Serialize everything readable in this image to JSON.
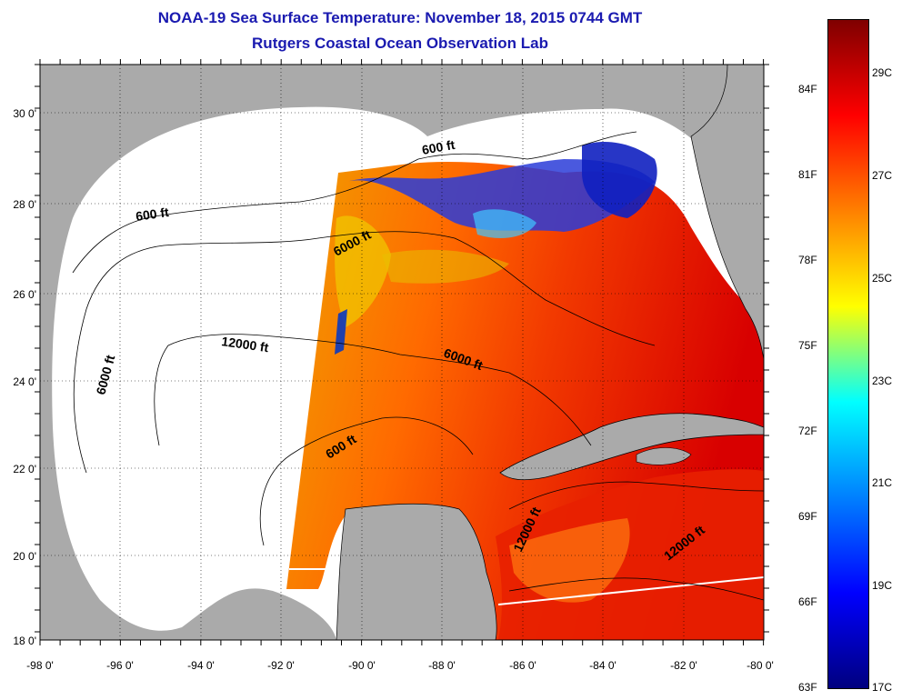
{
  "title": {
    "line1": "NOAA-19 Sea Surface Temperature:  November 18, 2015 0744 GMT",
    "line2": "Rutgers Coastal Ocean Observation Lab"
  },
  "map": {
    "lon_ticks": [
      "-98 0'",
      "-96 0'",
      "-94 0'",
      "-92 0'",
      "-90 0'",
      "-88 0'",
      "-86 0'",
      "-84 0'",
      "-82 0'",
      "-80 0'"
    ],
    "lat_ticks": [
      "30 0'",
      "28 0'",
      "26 0'",
      "24 0'",
      "22 0'",
      "20 0'",
      "18 0'"
    ],
    "contour_labels": [
      {
        "text": "600 ft"
      },
      {
        "text": "600 ft"
      },
      {
        "text": "6000 ft"
      },
      {
        "text": "6000 ft"
      },
      {
        "text": "12000 ft"
      },
      {
        "text": "6000 ft"
      },
      {
        "text": "600 ft"
      },
      {
        "text": "12000 ft"
      },
      {
        "text": "12000 ft"
      }
    ]
  },
  "colorbar": {
    "fahrenheit_labels": [
      "84F",
      "81F",
      "78F",
      "75F",
      "72F",
      "69F",
      "66F",
      "63F"
    ],
    "celsius_labels": [
      "29C",
      "27C",
      "25C",
      "23C",
      "21C",
      "19C",
      "17C"
    ],
    "colors": [
      "#7f0000",
      "#ff0000",
      "#ff8000",
      "#ffff00",
      "#00ffff",
      "#0080ff",
      "#0000ff",
      "#00007f"
    ]
  }
}
